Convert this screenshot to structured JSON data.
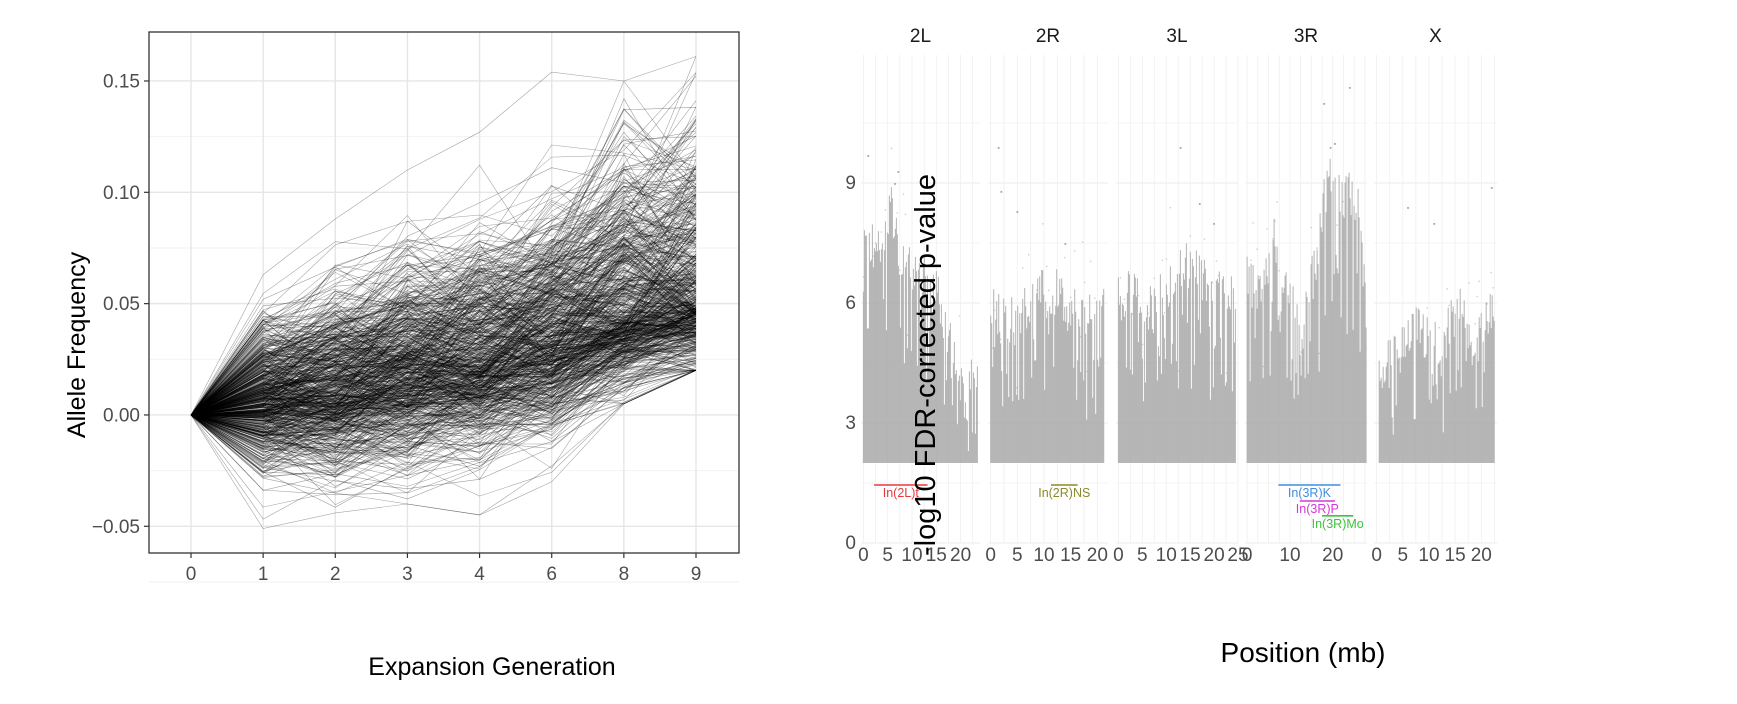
{
  "chart_data": [
    {
      "type": "line",
      "description_series": "thousands of individual allele-frequency trajectories (thin black lines)",
      "xlabel": "Expansion Generation",
      "ylabel": "Allele Frequency",
      "categories": [
        "0",
        "1",
        "2",
        "3",
        "4",
        "6",
        "8",
        "9"
      ],
      "y_ticks": [
        "−0.05",
        "0.00",
        "0.05",
        "0.10",
        "0.15"
      ],
      "y_tick_values": [
        -0.05,
        0.0,
        0.05,
        0.1,
        0.15
      ],
      "ylim": [
        -0.062,
        0.172
      ],
      "grid": true,
      "line_color": "#000000",
      "band": {
        "median": [
          0.0,
          0.006,
          0.01,
          0.017,
          0.022,
          0.032,
          0.043,
          0.048
        ],
        "lower": [
          0.0,
          -0.024,
          -0.028,
          -0.022,
          -0.019,
          -0.008,
          0.012,
          0.02
        ],
        "upper": [
          0.0,
          0.045,
          0.06,
          0.072,
          0.08,
          0.095,
          0.12,
          0.13
        ],
        "extreme_low": [
          0.0,
          -0.051,
          -0.044,
          -0.04,
          -0.045,
          -0.03,
          0.005,
          0.02
        ],
        "extreme_high": [
          0.0,
          0.063,
          0.088,
          0.11,
          0.127,
          0.154,
          0.15,
          0.161
        ]
      }
    },
    {
      "type": "scatter",
      "description_series": "genome-wide -log10 FDR-corrected p-values per SNP (grey points), faceted by chromosome arm",
      "xlabel": "Position (mb)",
      "ylabel": "-log10 FDR-corrected p-value",
      "point_color": "#a6a6a6",
      "y_ticks": [
        "0",
        "3",
        "6",
        "9"
      ],
      "y_tick_values": [
        0,
        3,
        6,
        9
      ],
      "ylim": [
        0,
        12.2
      ],
      "grid": true,
      "threshold": 2.0,
      "facets": [
        {
          "name": "2L",
          "xlim": [
            -0.5,
            24
          ],
          "x_ticks": [
            "0",
            "5",
            "10",
            "15",
            "20"
          ],
          "x_tick_values": [
            0,
            5,
            10,
            15,
            20
          ],
          "data_range": [
            0,
            23.5
          ],
          "profile": [
            [
              0,
              8.6
            ],
            [
              2,
              7.3
            ],
            [
              4,
              7.6
            ],
            [
              6,
              8.4
            ],
            [
              7.5,
              7.0
            ],
            [
              9,
              6.9
            ],
            [
              12,
              6.6
            ],
            [
              15,
              6.3
            ],
            [
              18,
              5.0
            ],
            [
              21,
              4.1
            ],
            [
              23.5,
              4.2
            ]
          ],
          "peaks": [
            [
              1,
              9.7
            ],
            [
              6.5,
              9.0
            ],
            [
              7.2,
              9.3
            ]
          ],
          "inversions": [
            {
              "label": "In(2L)t",
              "start": 2.2,
              "end": 13.2,
              "y": 1.45,
              "color": "#e8383d"
            }
          ]
        },
        {
          "name": "2R",
          "xlim": [
            -0.5,
            22
          ],
          "x_ticks": [
            "0",
            "5",
            "10",
            "15",
            "20"
          ],
          "x_tick_values": [
            0,
            5,
            10,
            15,
            20
          ],
          "data_range": [
            0,
            21.2
          ],
          "profile": [
            [
              0,
              6.0
            ],
            [
              3,
              5.4
            ],
            [
              6,
              5.7
            ],
            [
              9,
              6.2
            ],
            [
              12,
              6.3
            ],
            [
              15,
              5.8
            ],
            [
              18,
              5.6
            ],
            [
              21.2,
              5.9
            ]
          ],
          "peaks": [
            [
              1.5,
              9.9
            ],
            [
              2,
              8.8
            ],
            [
              5,
              8.3
            ],
            [
              14,
              7.5
            ]
          ],
          "inversions": [
            {
              "label": "In(2R)NS",
              "start": 11.3,
              "end": 16.3,
              "y": 1.45,
              "color": "#8a8a2a"
            }
          ]
        },
        {
          "name": "3L",
          "xlim": [
            -0.5,
            25
          ],
          "x_ticks": [
            "0",
            "5",
            "10",
            "15",
            "20",
            "25"
          ],
          "x_tick_values": [
            0,
            5,
            10,
            15,
            20,
            25
          ],
          "data_range": [
            0,
            24.5
          ],
          "profile": [
            [
              0,
              6.0
            ],
            [
              3,
              6.3
            ],
            [
              7,
              5.8
            ],
            [
              11,
              6.6
            ],
            [
              15,
              7.0
            ],
            [
              18,
              6.6
            ],
            [
              21,
              6.2
            ],
            [
              24.5,
              6.0
            ]
          ],
          "peaks": [
            [
              13,
              9.9
            ],
            [
              17,
              8.5
            ],
            [
              20,
              8.0
            ]
          ],
          "inversions": []
        },
        {
          "name": "3R",
          "xlim": [
            -0.5,
            28
          ],
          "x_ticks": [
            "0",
            "10",
            "20"
          ],
          "x_tick_values": [
            0,
            10,
            20
          ],
          "data_range": [
            0,
            27.9
          ],
          "profile": [
            [
              0,
              6.7
            ],
            [
              3,
              6.2
            ],
            [
              6,
              7.6
            ],
            [
              10,
              6.2
            ],
            [
              13,
              5.4
            ],
            [
              16,
              7.0
            ],
            [
              18,
              8.6
            ],
            [
              20,
              9.1
            ],
            [
              23,
              8.6
            ],
            [
              26,
              8.7
            ],
            [
              27.9,
              6.0
            ]
          ],
          "peaks": [
            [
              18,
              11.0
            ],
            [
              20.5,
              10.0
            ],
            [
              24,
              11.4
            ],
            [
              19.5,
              9.9
            ]
          ],
          "inversions": [
            {
              "label": "In(3R)K",
              "start": 7.3,
              "end": 21.8,
              "y": 1.45,
              "color": "#3d8fe0"
            },
            {
              "label": "In(3R)P",
              "start": 12.3,
              "end": 20.5,
              "y": 1.05,
              "color": "#d43ad4"
            },
            {
              "label": "In(3R)Mo",
              "start": 17.5,
              "end": 24.8,
              "y": 0.68,
              "color": "#3cc43c"
            }
          ]
        },
        {
          "name": "X",
          "xlim": [
            -0.5,
            23
          ],
          "x_ticks": [
            "0",
            "5",
            "10",
            "15",
            "20"
          ],
          "x_tick_values": [
            0,
            5,
            10,
            15,
            20
          ],
          "data_range": [
            0.5,
            22.5
          ],
          "profile": [
            [
              0.5,
              4.3
            ],
            [
              4,
              4.6
            ],
            [
              8,
              5.4
            ],
            [
              12,
              4.8
            ],
            [
              16,
              6.0
            ],
            [
              19,
              5.0
            ],
            [
              22.5,
              5.8
            ]
          ],
          "peaks": [
            [
              6,
              8.4
            ],
            [
              11,
              8.0
            ],
            [
              22,
              8.9
            ]
          ],
          "inversions": []
        }
      ]
    }
  ]
}
